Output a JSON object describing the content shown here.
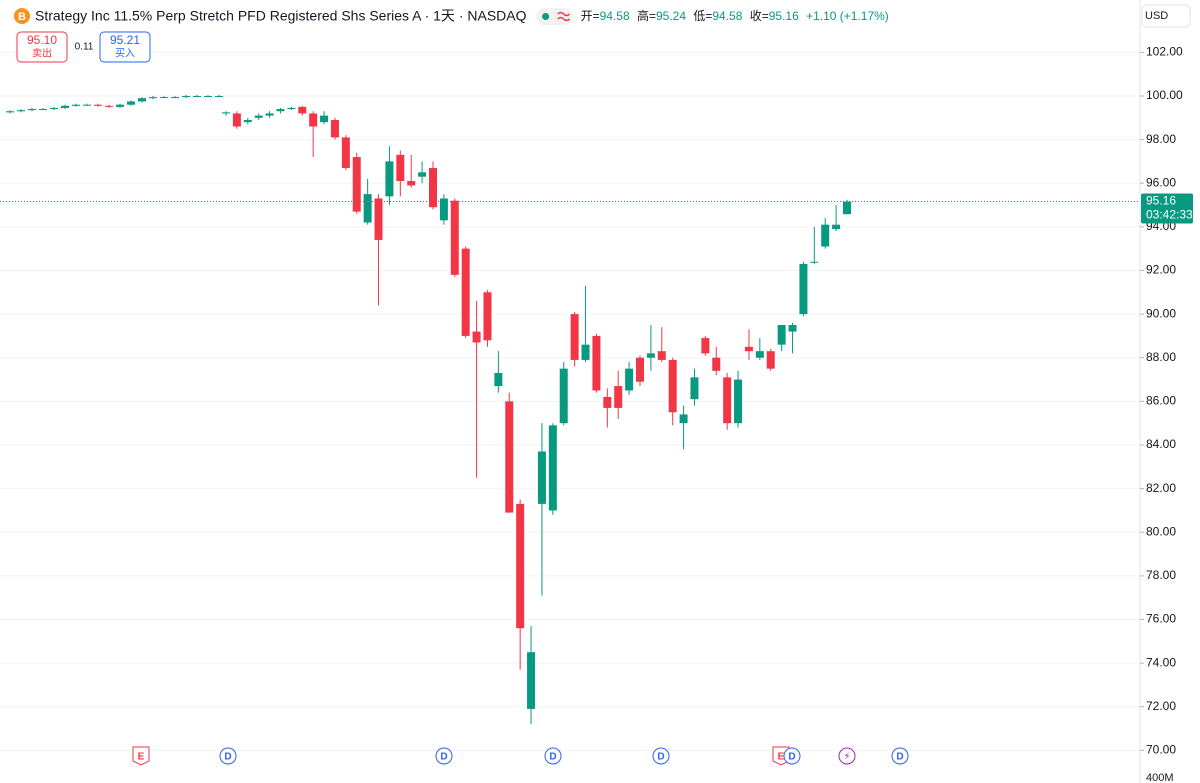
{
  "header": {
    "logo": "B",
    "title": "Strategy Inc 11.5% Perp Stretch PFD Registered Shs Series A · 1天 · NASDAQ",
    "ohlc_labels": [
      "开=",
      "高=",
      "低=",
      "收="
    ],
    "change": "+1.10 (+1.17%)"
  },
  "trade": {
    "sell_price": "95.10",
    "sell_label": "卖出",
    "spread": "0.11",
    "buy_price": "95.21",
    "buy_label": "买入"
  },
  "currency": "USD",
  "price_tag": {
    "countdown": "03:42:33"
  },
  "events": [
    "E",
    "D",
    "D",
    "D",
    "D",
    "E",
    "D",
    "⚡",
    "D"
  ],
  "volume_axis_label": "400M",
  "chart_data": {
    "type": "candlestick",
    "up_color": "#089981",
    "down_color": "#f23645",
    "open": [
      99.25,
      99.3,
      99.35,
      99.4,
      99.4,
      99.45,
      99.55,
      99.6,
      99.6,
      99.55,
      99.5,
      99.6,
      99.75,
      99.9,
      99.95,
      99.95,
      99.95,
      100,
      100,
      100,
      99.2,
      99.2,
      98.8,
      99.0,
      99.1,
      99.3,
      99.4,
      99.5,
      99.2,
      98.8,
      98.9,
      98.1,
      97.2,
      94.2,
      95.3,
      95.4,
      97.3,
      96.1,
      96.3,
      96.7,
      94.3,
      95.2,
      93.0,
      89.2,
      91.0,
      86.7,
      86.0,
      81.3,
      71.9,
      81.3,
      81.0,
      85.0,
      90.0,
      87.9,
      89.0,
      86.2,
      86.7,
      86.5,
      88.0,
      88.0,
      88.3,
      87.9,
      85.0,
      86.1,
      88.9,
      88.0,
      87.1,
      85.0,
      88.5,
      88.0,
      88.3,
      88.6,
      89.2,
      90.0,
      92.4,
      93.1,
      93.9,
      94.58
    ],
    "high": [
      99.35,
      99.4,
      99.45,
      99.45,
      99.5,
      99.6,
      99.65,
      99.65,
      99.65,
      99.6,
      99.65,
      99.8,
      99.95,
      100,
      100,
      100,
      100.05,
      100.05,
      100.05,
      100.05,
      99.3,
      99.3,
      99.0,
      99.2,
      99.3,
      99.45,
      99.5,
      99.55,
      99.3,
      99.3,
      99.0,
      98.2,
      97.4,
      96.2,
      95.5,
      97.7,
      97.5,
      97.3,
      97.0,
      97.0,
      95.5,
      95.3,
      93.1,
      90.6,
      91.1,
      88.3,
      86.4,
      81.5,
      75.7,
      85.0,
      85.0,
      87.8,
      90.1,
      91.3,
      89.1,
      86.6,
      87.4,
      87.8,
      88.1,
      89.5,
      89.4,
      88.0,
      85.8,
      87.5,
      89.0,
      88.5,
      87.3,
      87.4,
      89.3,
      88.9,
      88.4,
      89.5,
      89.6,
      92.4,
      94.0,
      94.4,
      95.0,
      95.24
    ],
    "low": [
      99.2,
      99.25,
      99.3,
      99.35,
      99.35,
      99.4,
      99.5,
      99.55,
      99.5,
      99.45,
      99.45,
      99.55,
      99.7,
      99.85,
      99.9,
      99.9,
      99.9,
      99.95,
      99.95,
      99.95,
      99.1,
      98.5,
      98.7,
      98.9,
      99.0,
      99.2,
      99.35,
      99.1,
      97.2,
      98.7,
      98.0,
      96.6,
      94.6,
      94.1,
      90.4,
      95.0,
      95.4,
      95.8,
      96.0,
      94.8,
      94.1,
      91.7,
      88.9,
      82.5,
      88.5,
      86.4,
      80.9,
      73.7,
      71.2,
      77.1,
      80.8,
      84.9,
      87.6,
      87.8,
      86.4,
      84.8,
      85.2,
      86.3,
      86.7,
      87.4,
      87.8,
      84.9,
      83.8,
      85.8,
      88.1,
      87.2,
      84.7,
      84.8,
      87.9,
      87.9,
      87.4,
      88.3,
      88.2,
      89.9,
      92.3,
      93.0,
      93.8,
      94.58
    ],
    "close": [
      99.3,
      99.35,
      99.4,
      99.4,
      99.45,
      99.55,
      99.6,
      99.6,
      99.55,
      99.5,
      99.6,
      99.75,
      99.9,
      99.95,
      99.95,
      99.95,
      100,
      100,
      100,
      100,
      99.25,
      98.6,
      98.9,
      99.1,
      99.2,
      99.4,
      99.45,
      99.2,
      98.6,
      99.1,
      98.1,
      96.7,
      94.7,
      95.5,
      93.4,
      97.0,
      96.1,
      95.9,
      96.5,
      94.9,
      95.3,
      91.8,
      89.0,
      88.7,
      88.8,
      87.3,
      80.9,
      75.6,
      74.5,
      83.7,
      84.9,
      87.5,
      87.9,
      88.6,
      86.5,
      85.7,
      85.7,
      87.5,
      86.9,
      88.2,
      87.9,
      85.5,
      85.4,
      87.1,
      88.2,
      87.4,
      85.0,
      87.0,
      88.3,
      88.3,
      87.5,
      89.5,
      89.5,
      92.3,
      92.4,
      94.1,
      94.1,
      95.16
    ],
    "ylim": [
      69.1,
      104.4
    ],
    "yticks": [
      {
        "value": 70,
        "label": "70.00"
      },
      {
        "value": 72,
        "label": "72.00"
      },
      {
        "value": 74,
        "label": "74.00"
      },
      {
        "value": 76,
        "label": "76.00"
      },
      {
        "value": 78,
        "label": "78.00"
      },
      {
        "value": 80,
        "label": "80.00"
      },
      {
        "value": 82,
        "label": "82.00"
      },
      {
        "value": 84,
        "label": "84.00"
      },
      {
        "value": 86,
        "label": "86.00"
      },
      {
        "value": 88,
        "label": "88.00"
      },
      {
        "value": 90,
        "label": "90.00"
      },
      {
        "value": 92,
        "label": "92.00"
      },
      {
        "value": 94,
        "label": "94.00"
      },
      {
        "value": 96,
        "label": "96.00"
      },
      {
        "value": 98,
        "label": "98.00"
      },
      {
        "value": 100,
        "label": "100.00"
      },
      {
        "value": 102,
        "label": "102.00"
      }
    ],
    "grid": true
  }
}
